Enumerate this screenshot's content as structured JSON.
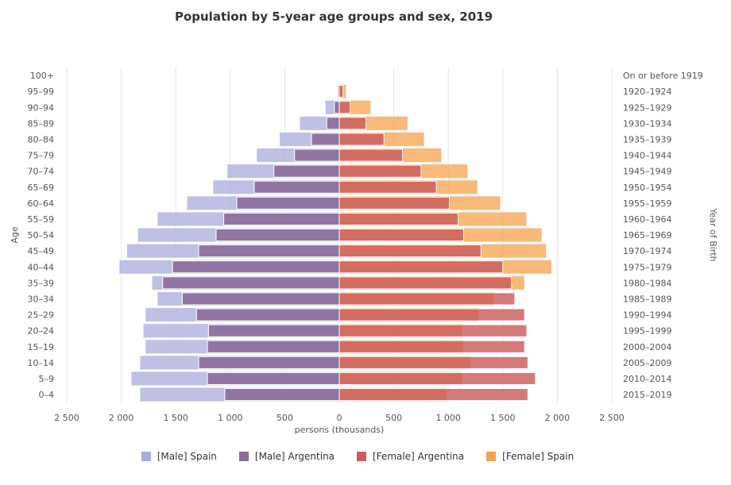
{
  "chart_data": {
    "type": "bar",
    "title": "Population by 5-year age groups and sex, 2019",
    "xlabel": "persons (thousands)",
    "ylabel": "Age",
    "y2label": "Year of Birth",
    "xlim": [
      -2500,
      2500
    ],
    "xticks": [
      -2500,
      -2000,
      -1500,
      -1000,
      -500,
      0,
      500,
      1000,
      1500,
      2000,
      2500
    ],
    "xtick_labels": [
      "2 500",
      "2 000",
      "1 500",
      "1 000",
      "500",
      "0",
      "500",
      "1 000",
      "1 500",
      "2 000",
      "2 500"
    ],
    "categories": [
      "100+",
      "95–99",
      "90–94",
      "85–89",
      "80–84",
      "75–79",
      "70–74",
      "65–69",
      "60–64",
      "55–59",
      "50–54",
      "45–49",
      "40–44",
      "35–39",
      "30–34",
      "25–29",
      "20–24",
      "15–19",
      "10–14",
      "5–9",
      "0–4"
    ],
    "birth_years": [
      "On or before 1919",
      "1920–1924",
      "1925–1929",
      "1930–1934",
      "1935–1939",
      "1940–1944",
      "1945–1949",
      "1950–1954",
      "1955–1959",
      "1960–1964",
      "1965–1969",
      "1970–1974",
      "1975–1979",
      "1980–1984",
      "1985–1989",
      "1990–1994",
      "1995–1999",
      "2000–2004",
      "2005–2009",
      "2010–2014",
      "2015–2019"
    ],
    "grid": true,
    "legend_position": "bottom-center",
    "series": [
      {
        "name": "[Male] Spain",
        "color": "#a8acdc",
        "side": "left",
        "values": [
          3,
          20,
          130,
          365,
          550,
          760,
          1030,
          1160,
          1400,
          1670,
          1850,
          1950,
          2020,
          1720,
          1670,
          1780,
          1800,
          1780,
          1830,
          1910,
          1830
        ]
      },
      {
        "name": "[Male] Argentina",
        "color": "#8b6d9c",
        "side": "left",
        "values": [
          2,
          12,
          45,
          115,
          255,
          410,
          600,
          780,
          940,
          1060,
          1130,
          1290,
          1530,
          1620,
          1440,
          1310,
          1200,
          1210,
          1290,
          1210,
          1050
        ]
      },
      {
        "name": "[Female] Argentina",
        "color": "#cc5c5c",
        "side": "right",
        "values": [
          5,
          35,
          100,
          245,
          410,
          580,
          750,
          890,
          1010,
          1090,
          1140,
          1300,
          1500,
          1580,
          1610,
          1700,
          1720,
          1700,
          1730,
          1800,
          1730
        ]
      },
      {
        "name": "[Female] Spain",
        "color": "#f5a24c",
        "side": "right",
        "values": [
          8,
          65,
          290,
          630,
          780,
          940,
          1180,
          1270,
          1480,
          1720,
          1860,
          1900,
          1950,
          1700,
          1420,
          1280,
          1130,
          1140,
          1210,
          1130,
          990
        ]
      }
    ]
  }
}
